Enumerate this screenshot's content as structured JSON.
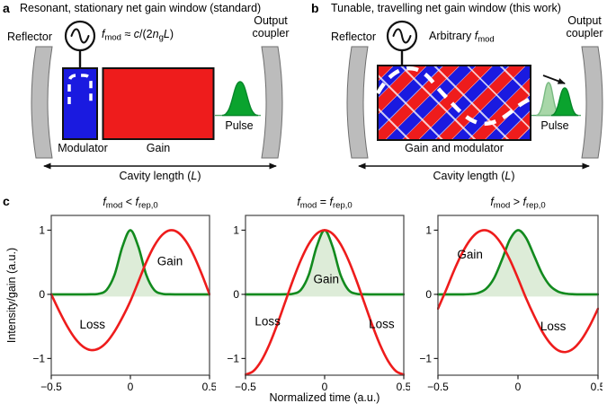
{
  "colors": {
    "red": "#ee1c1c",
    "blue": "#1a1ae0",
    "green_pulse": "#0aa32e",
    "green_pulse_light": "#a8d7a8",
    "green_curve": "#128a1e",
    "green_fill": "#ddecd8",
    "mirror_gray": "#bcbcbc",
    "outline": "#111111"
  },
  "panel_a": {
    "label": "a",
    "title": "Resonant, stationary net gain window (standard)",
    "reflector": "Reflector",
    "output_coupler": "Output coupler",
    "formula": {
      "f": "f",
      "f_sub": "mod",
      "approx": " ≈ ",
      "c": "c",
      "open": "/(2",
      "n": "n",
      "n_sub": "g",
      "L": "L",
      "close": ")"
    },
    "modulator": "Modulator",
    "gain": "Gain",
    "pulse": "Pulse",
    "cavity": {
      "pre": "Cavity length (",
      "L": "L",
      "post": ")"
    }
  },
  "panel_b": {
    "label": "b",
    "title": "Tunable, travelling net gain window (this work)",
    "reflector": "Reflector",
    "output_coupler": "Output coupler",
    "arbitrary": {
      "pre": "Arbitrary ",
      "f": "f",
      "f_sub": "mod"
    },
    "gain_modulator": "Gain and modulator",
    "pulse": "Pulse",
    "cavity": {
      "pre": "Cavity length (",
      "L": "L",
      "post": ")"
    }
  },
  "panel_c": {
    "label": "c",
    "ylabel": "Intensity/gain (a.u.)",
    "xlabel": "Normalized time (a.u.)"
  },
  "chart_data": [
    {
      "type": "line",
      "title": "f_mod < f_rep,0",
      "title_parts": {
        "f1": "f",
        "s1": "mod",
        "op": " < ",
        "f2": "f",
        "s2": "rep,0"
      },
      "xlabel": "Normalized time (a.u.)",
      "ylabel": "Intensity/gain (a.u.)",
      "xlim": [
        -0.5,
        0.5
      ],
      "ylim": [
        -1.26,
        1.23
      ],
      "xticks": [
        [
          -0.5,
          "−0.5"
        ],
        [
          0,
          "0"
        ],
        [
          0.5,
          "0.5"
        ]
      ],
      "yticks": [
        [
          1,
          "1"
        ],
        [
          0,
          "0"
        ],
        [
          -1,
          "−1"
        ]
      ],
      "grid": false,
      "legend": false,
      "x": [
        -0.5,
        -0.45,
        -0.4,
        -0.35,
        -0.3,
        -0.25,
        -0.2,
        -0.15,
        -0.1,
        -0.05,
        0,
        0.05,
        0.1,
        0.15,
        0.2,
        0.25,
        0.3,
        0.35,
        0.4,
        0.45,
        0.5
      ],
      "series": [
        {
          "name": "pulse intensity (green)",
          "color": "#128a1e",
          "fill": "#ddecd8",
          "baseline": -0.035,
          "values": [
            0,
            0,
            0,
            0,
            0,
            0.001,
            0.009,
            0.07,
            0.306,
            0.744,
            1,
            0.744,
            0.306,
            0.07,
            0.009,
            0.001,
            0,
            0,
            0,
            0,
            0
          ]
        },
        {
          "name": "net gain/loss modulation (red)",
          "color": "#ee1c1c",
          "values": [
            0,
            -0.259,
            -0.494,
            -0.685,
            -0.813,
            -0.868,
            -0.845,
            -0.746,
            -0.577,
            -0.358,
            -0.105,
            0.195,
            0.5,
            0.752,
            0.924,
            0.998,
            0.966,
            0.831,
            0.609,
            0.321,
            0
          ]
        }
      ],
      "annotations": [
        {
          "text": "Gain",
          "x": 0.25,
          "y": 0.52
        },
        {
          "text": "Loss",
          "x": -0.24,
          "y": -0.47
        }
      ]
    },
    {
      "type": "line",
      "title": "f_mod = f_rep,0",
      "title_parts": {
        "f1": "f",
        "s1": "mod",
        "op": " = ",
        "f2": "f",
        "s2": "rep,0"
      },
      "xlabel": "Normalized time (a.u.)",
      "ylabel": "Intensity/gain (a.u.)",
      "xlim": [
        -0.5,
        0.5
      ],
      "ylim": [
        -1.26,
        1.23
      ],
      "xticks": [
        [
          -0.5,
          "−0.5"
        ],
        [
          0,
          "0"
        ],
        [
          0.5,
          "0.5"
        ]
      ],
      "yticks": [
        [
          1,
          "1"
        ],
        [
          0,
          "0"
        ],
        [
          -1,
          "−1"
        ]
      ],
      "grid": false,
      "legend": false,
      "x": [
        -0.5,
        -0.45,
        -0.4,
        -0.35,
        -0.3,
        -0.25,
        -0.2,
        -0.15,
        -0.1,
        -0.05,
        0,
        0.05,
        0.1,
        0.15,
        0.2,
        0.25,
        0.3,
        0.35,
        0.4,
        0.45,
        0.5
      ],
      "series": [
        {
          "name": "pulse intensity (green)",
          "color": "#128a1e",
          "fill": "#ddecd8",
          "baseline": -0.035,
          "values": [
            0,
            0,
            0,
            0,
            0,
            0.001,
            0.009,
            0.07,
            0.306,
            0.744,
            1,
            0.744,
            0.306,
            0.07,
            0.009,
            0.001,
            0,
            0,
            0,
            0,
            0
          ]
        },
        {
          "name": "net gain/loss modulation (red)",
          "color": "#ee1c1c",
          "values": [
            -1.25,
            -1.195,
            -1.035,
            -0.786,
            -0.473,
            -0.125,
            0.223,
            0.536,
            0.785,
            0.945,
            1,
            0.945,
            0.785,
            0.536,
            0.223,
            -0.125,
            -0.473,
            -0.786,
            -1.035,
            -1.195,
            -1.25
          ]
        }
      ],
      "annotations": [
        {
          "text": "Gain",
          "x": 0.01,
          "y": 0.24
        },
        {
          "text": "Loss",
          "x": -0.36,
          "y": -0.42
        },
        {
          "text": "Loss",
          "x": 0.36,
          "y": -0.46
        }
      ]
    },
    {
      "type": "line",
      "title": "f_mod > f_rep,0",
      "title_parts": {
        "f1": "f",
        "s1": "mod",
        "op": " > ",
        "f2": "f",
        "s2": "rep,0"
      },
      "xlabel": "Normalized time (a.u.)",
      "ylabel": "Intensity/gain (a.u.)",
      "xlim": [
        -0.5,
        0.5
      ],
      "ylim": [
        -1.26,
        1.23
      ],
      "xticks": [
        [
          -0.5,
          "−0.5"
        ],
        [
          0,
          "0"
        ],
        [
          0.5,
          "0.5"
        ]
      ],
      "yticks": [
        [
          1,
          "1"
        ],
        [
          0,
          "0"
        ],
        [
          -1,
          "−1"
        ]
      ],
      "grid": false,
      "legend": false,
      "x": [
        -0.5,
        -0.45,
        -0.4,
        -0.35,
        -0.3,
        -0.25,
        -0.2,
        -0.15,
        -0.1,
        -0.05,
        0,
        0.05,
        0.1,
        0.15,
        0.2,
        0.25,
        0.3,
        0.35,
        0.4,
        0.45,
        0.5
      ],
      "series": [
        {
          "name": "pulse intensity (green)",
          "color": "#128a1e",
          "fill": "#ddecd8",
          "baseline": -0.035,
          "values": [
            0,
            0,
            0,
            0,
            0.004,
            0.021,
            0.085,
            0.249,
            0.539,
            0.857,
            1,
            0.882,
            0.607,
            0.325,
            0.135,
            0.044,
            0.011,
            0.002,
            0,
            0,
            0
          ]
        },
        {
          "name": "net gain/loss modulation (red)",
          "color": "#ee1c1c",
          "values": [
            -0.224,
            0.063,
            0.368,
            0.637,
            0.844,
            0.969,
            0.998,
            0.93,
            0.771,
            0.536,
            0.249,
            -0.057,
            -0.331,
            -0.574,
            -0.76,
            -0.872,
            -0.898,
            -0.837,
            -0.693,
            -0.482,
            -0.224
          ]
        }
      ],
      "annotations": [
        {
          "text": "Gain",
          "x": -0.3,
          "y": 0.62
        },
        {
          "text": "Loss",
          "x": 0.22,
          "y": -0.5
        }
      ]
    }
  ]
}
